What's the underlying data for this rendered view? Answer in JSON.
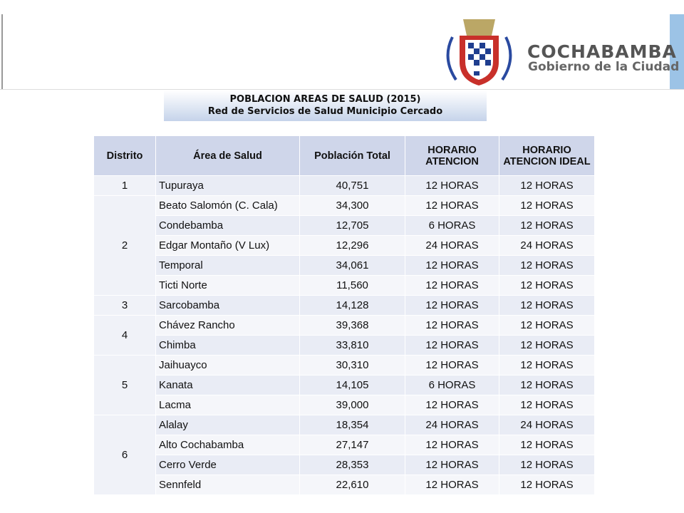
{
  "header": {
    "brand": "COCHABAMBA",
    "subbrand": "Gobierno de la Ciudad"
  },
  "title": {
    "line1": "POBLACION AREAS DE SALUD (2015)",
    "line2": "Red de Servicios de Salud Municipio Cercado"
  },
  "table": {
    "columns": [
      "Distrito",
      "Área de Salud",
      "Población Total",
      "HORARIO ATENCION",
      "HORARIO ATENCION IDEAL"
    ],
    "groups": [
      {
        "distrito": "1",
        "rows": [
          [
            "Tupuraya",
            "40,751",
            "12 HORAS",
            "12 HORAS"
          ]
        ]
      },
      {
        "distrito": "2",
        "rows": [
          [
            "Beato Salomón (C. Cala)",
            "34,300",
            "12 HORAS",
            "12 HORAS"
          ],
          [
            "Condebamba",
            "12,705",
            "6 HORAS",
            "12 HORAS"
          ],
          [
            "Edgar Montaño (V Lux)",
            "12,296",
            "24 HORAS",
            "24 HORAS"
          ],
          [
            "Temporal",
            "34,061",
            "12 HORAS",
            "12 HORAS"
          ],
          [
            "Ticti Norte",
            "11,560",
            "12 HORAS",
            "12 HORAS"
          ]
        ]
      },
      {
        "distrito": "3",
        "rows": [
          [
            "Sarcobamba",
            "14,128",
            "12 HORAS",
            "12 HORAS"
          ]
        ]
      },
      {
        "distrito": "4",
        "rows": [
          [
            "Chávez Rancho",
            "39,368",
            "12 HORAS",
            "12 HORAS"
          ],
          [
            "Chimba",
            "33,810",
            "12 HORAS",
            "12 HORAS"
          ]
        ]
      },
      {
        "distrito": "5",
        "rows": [
          [
            "Jaihuayco",
            "30,310",
            "12 HORAS",
            "12 HORAS"
          ],
          [
            "Kanata",
            "14,105",
            "6 HORAS",
            "12 HORAS"
          ],
          [
            "Lacma",
            "39,000",
            "12 HORAS",
            "12 HORAS"
          ]
        ]
      },
      {
        "distrito": "6",
        "rows": [
          [
            "Alalay",
            "18,354",
            "24 HORAS",
            "24 HORAS"
          ],
          [
            "Alto Cochabamba",
            "27,147",
            "12 HORAS",
            "12 HORAS"
          ],
          [
            "Cerro Verde",
            "28,353",
            "12 HORAS",
            "12 HORAS"
          ],
          [
            "Sennfeld",
            "22,610",
            "12 HORAS",
            "12 HORAS"
          ]
        ]
      }
    ]
  }
}
